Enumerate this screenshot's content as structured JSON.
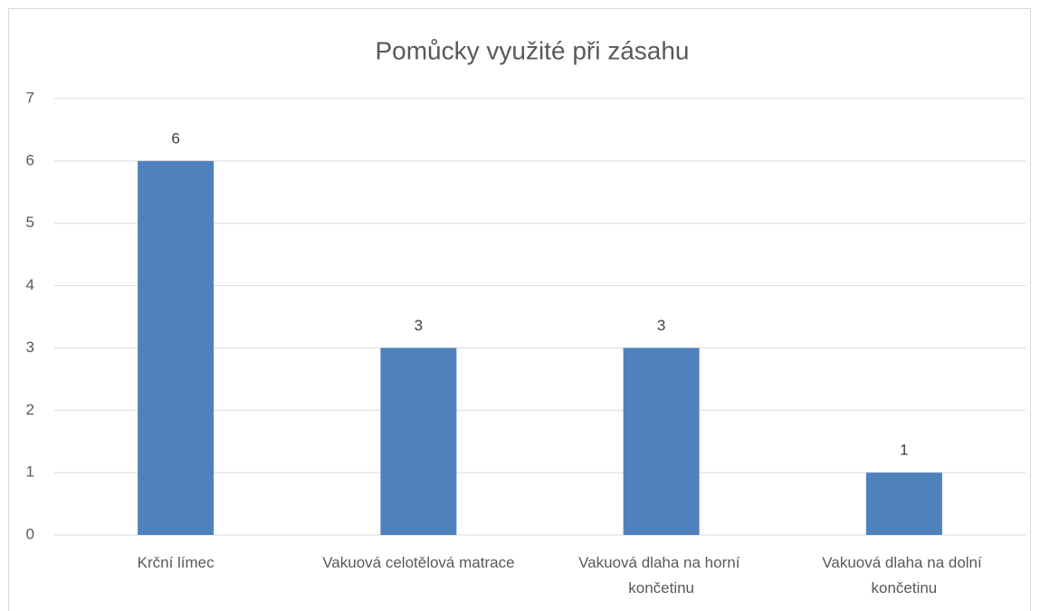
{
  "chart_data": {
    "type": "bar",
    "title": "Pomůcky využité při zásahu",
    "categories": [
      "Krční límec",
      "Vakuová celotělová matrace",
      "Vakuová dlaha na horní končetinu",
      "Vakuová dlaha na dolní končetinu"
    ],
    "values": [
      6,
      3,
      3,
      1
    ],
    "color": "#4f81bd",
    "ylim": [
      0,
      7
    ],
    "yticks": [
      0,
      1,
      2,
      3,
      4,
      5,
      6,
      7
    ],
    "grid": true,
    "data_labels": true
  }
}
